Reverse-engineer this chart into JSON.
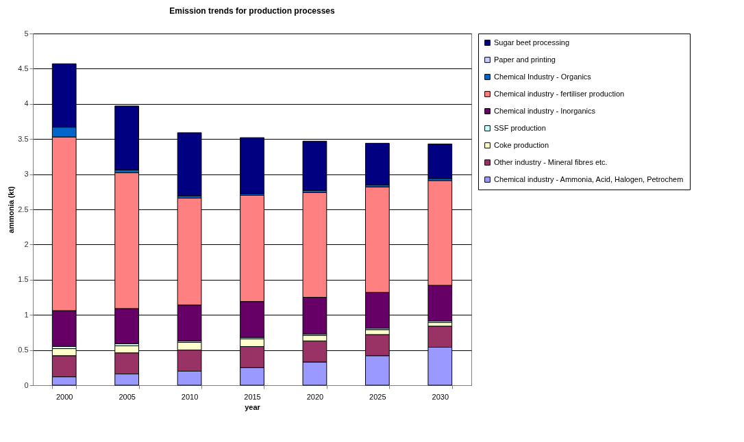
{
  "chart_data": {
    "type": "bar",
    "title": "Emission trends for production processes",
    "xlabel": "year",
    "ylabel": "ammonia (kt)",
    "categories": [
      "2000",
      "2005",
      "2010",
      "2015",
      "2020",
      "2025",
      "2030"
    ],
    "stacked": true,
    "ylim": [
      0,
      5
    ],
    "yticks": [
      0,
      0.5,
      1,
      1.5,
      2,
      2.5,
      3,
      3.5,
      4,
      4.5,
      5
    ],
    "grid": "y",
    "legend": "right",
    "series": [
      {
        "name": "Chemical industry - Ammonia, Acid, Halogen, Petrochem",
        "color": "#9999ff",
        "values": [
          0.12,
          0.16,
          0.2,
          0.25,
          0.33,
          0.42,
          0.54
        ]
      },
      {
        "name": "Other industry - Mineral fibres etc.",
        "color": "#993366",
        "values": [
          0.3,
          0.3,
          0.3,
          0.3,
          0.3,
          0.3,
          0.3
        ]
      },
      {
        "name": "Coke production",
        "color": "#ffffcc",
        "values": [
          0.1,
          0.1,
          0.11,
          0.11,
          0.08,
          0.07,
          0.05
        ]
      },
      {
        "name": "SSF production",
        "color": "#ccffff",
        "values": [
          0.03,
          0.03,
          0.02,
          0.02,
          0.02,
          0.02,
          0.02
        ]
      },
      {
        "name": "Chemical industry - Inorganics",
        "color": "#660066",
        "values": [
          0.51,
          0.5,
          0.51,
          0.51,
          0.52,
          0.51,
          0.51
        ]
      },
      {
        "name": "Chemical industry - fertiliser production",
        "color": "#ff8080",
        "values": [
          2.47,
          1.93,
          1.52,
          1.51,
          1.49,
          1.5,
          1.49
        ]
      },
      {
        "name": "Chemical Industry - Organics",
        "color": "#0066cc",
        "values": [
          0.14,
          0.04,
          0.03,
          0.02,
          0.03,
          0.03,
          0.03
        ]
      },
      {
        "name": "Paper and printing",
        "color": "#ccccff",
        "values": [
          null,
          null,
          null,
          null,
          null,
          null,
          null
        ]
      },
      {
        "name": "Sugar beet processing",
        "color": "#000080",
        "values": [
          0.9,
          0.91,
          0.9,
          0.8,
          0.7,
          0.59,
          0.49
        ]
      }
    ]
  }
}
